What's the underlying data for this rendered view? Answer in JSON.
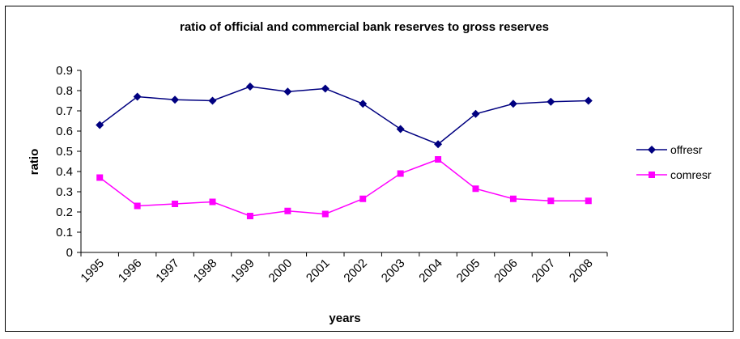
{
  "chart_data": {
    "type": "line",
    "title": "ratio of official and commercial bank reserves to gross reserves",
    "xlabel": "years",
    "ylabel": "ratio",
    "categories": [
      "1995",
      "1996",
      "1997",
      "1998",
      "1999",
      "2000",
      "2001",
      "2002",
      "2003",
      "2004",
      "2005",
      "2006",
      "2007",
      "2008"
    ],
    "ylim": [
      0,
      0.9
    ],
    "yticks": [
      "0",
      "0.1",
      "0.2",
      "0.3",
      "0.4",
      "0.5",
      "0.6",
      "0.7",
      "0.8",
      "0.9"
    ],
    "grid": false,
    "legend_position": "right",
    "series": [
      {
        "name": "offresr",
        "color": "#000080",
        "marker": "diamond",
        "values": [
          0.63,
          0.77,
          0.755,
          0.75,
          0.82,
          0.795,
          0.81,
          0.735,
          0.61,
          0.535,
          0.685,
          0.735,
          0.745,
          0.75
        ]
      },
      {
        "name": "comresr",
        "color": "#ff00ff",
        "marker": "square",
        "values": [
          0.37,
          0.23,
          0.24,
          0.25,
          0.18,
          0.205,
          0.19,
          0.265,
          0.39,
          0.46,
          0.315,
          0.265,
          0.255,
          0.255
        ]
      }
    ]
  }
}
